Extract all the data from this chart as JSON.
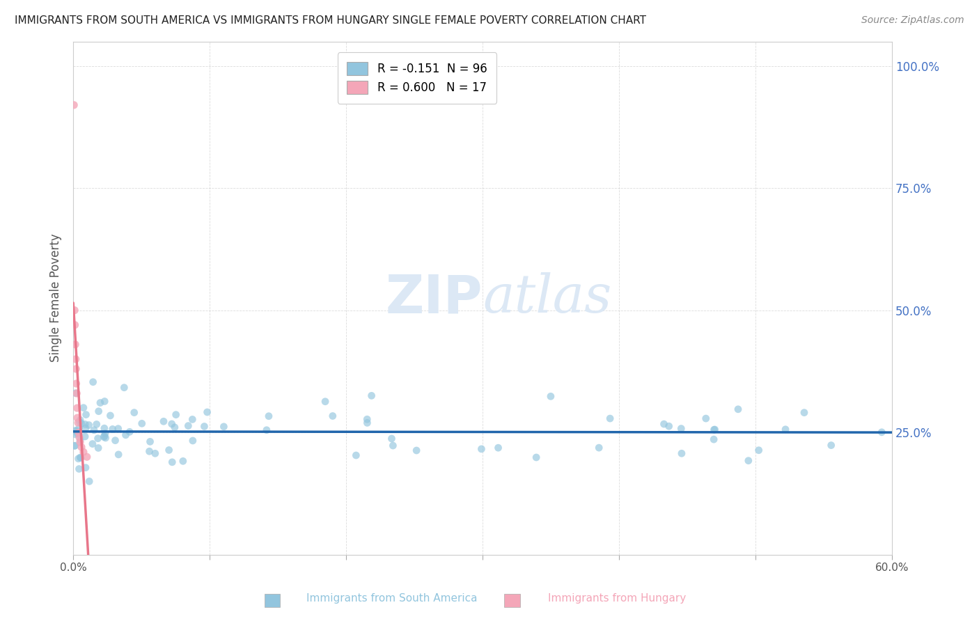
{
  "title": "IMMIGRANTS FROM SOUTH AMERICA VS IMMIGRANTS FROM HUNGARY SINGLE FEMALE POVERTY CORRELATION CHART",
  "source": "Source: ZipAtlas.com",
  "ylabel": "Single Female Poverty",
  "xlim": [
    0.0,
    0.6
  ],
  "ylim": [
    0.0,
    1.05
  ],
  "legend_entries": [
    {
      "label": "R = -0.151  N = 96",
      "color": "#92c5de"
    },
    {
      "label": "R = 0.600   N = 17",
      "color": "#f4a6b8"
    }
  ],
  "south_america_color": "#92c5de",
  "hungary_color": "#f4a6b8",
  "south_america_line_color": "#2166ac",
  "hungary_line_color": "#e8768a",
  "watermark_zip": "ZIP",
  "watermark_atlas": "atlas",
  "watermark_color": "#dce8f5",
  "background_color": "#ffffff",
  "grid_color": "#cccccc",
  "sa_seed": 42,
  "hu_seed": 7
}
